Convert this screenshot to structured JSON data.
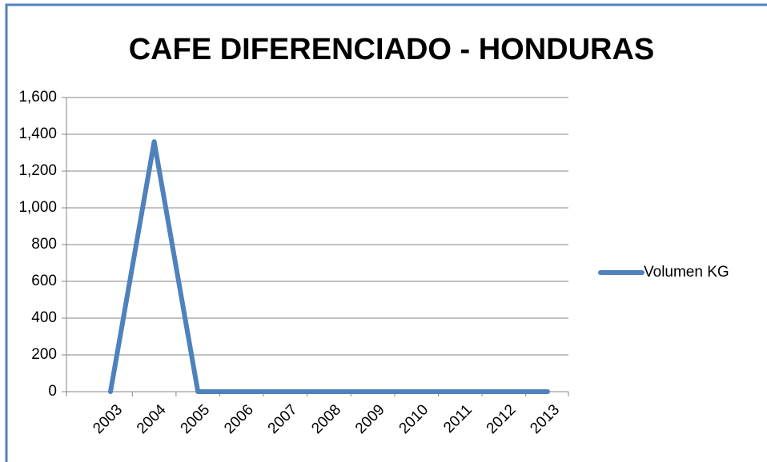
{
  "chart_data": {
    "type": "line",
    "title": "CAFE DIFERENCIADO - HONDURAS",
    "categories": [
      "2003",
      "2004",
      "2005",
      "2006",
      "2007",
      "2008",
      "2009",
      "2010",
      "2011",
      "2012",
      "2013"
    ],
    "series": [
      {
        "name": "Volumen KG",
        "color": "#4f81bd",
        "values": [
          0,
          1360,
          0,
          0,
          0,
          0,
          0,
          0,
          0,
          0,
          0
        ]
      }
    ],
    "ylim": [
      0,
      1600
    ],
    "yticks": [
      0,
      200,
      400,
      600,
      800,
      {
        "value": 1000,
        "label": "1,000"
      },
      {
        "value": 1200,
        "label": "1,200"
      },
      {
        "value": 1400,
        "label": "1,400"
      },
      {
        "value": 1600,
        "label": "1,600"
      }
    ],
    "grid": true,
    "legend": "right"
  }
}
